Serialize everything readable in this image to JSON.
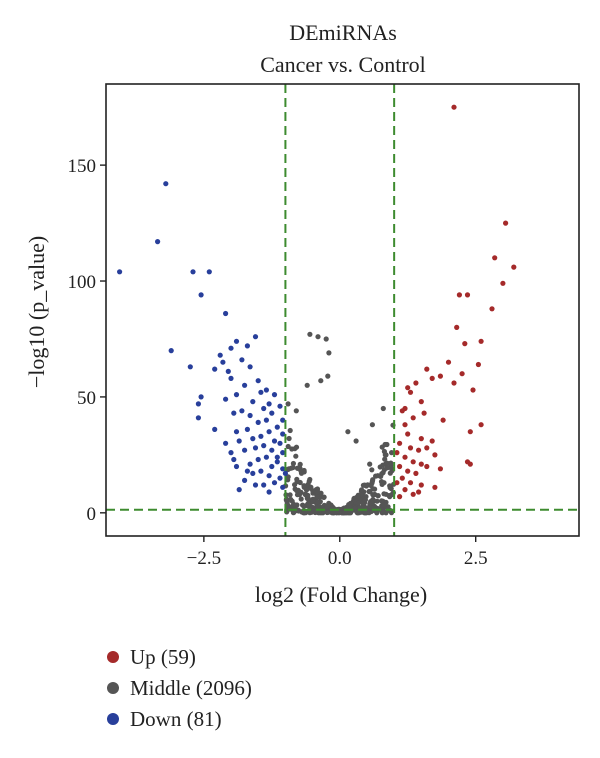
{
  "chart_data": {
    "type": "scatter",
    "title": "DEmiRNAs",
    "subtitle": "Cancer vs. Control",
    "xlabel": "log2 (Fold Change)",
    "ylabel": "−log10 (p_value)",
    "xlim": [
      -4.3,
      4.4
    ],
    "ylim": [
      -10,
      185
    ],
    "x_ticks": [
      -2.5,
      0.0,
      2.5
    ],
    "x_tick_labels": [
      "−2.5",
      "0.0",
      "2.5"
    ],
    "y_ticks": [
      0,
      50,
      100,
      150
    ],
    "y_tick_labels": [
      "0",
      "50",
      "100",
      "150"
    ],
    "grid": false,
    "reference_lines": {
      "vertical": [
        -1,
        1
      ],
      "horizontal": [
        1.3
      ],
      "color": "#3d8b2f",
      "style": "dashed"
    },
    "legend": {
      "placement": "below",
      "entries": [
        "Up (59)",
        "Middle (2096)",
        "Down (81)"
      ]
    },
    "series": [
      {
        "name": "Up (59)",
        "color": "#a52a2a",
        "points": [
          [
            2.1,
            175
          ],
          [
            3.05,
            125
          ],
          [
            3.2,
            106
          ],
          [
            2.85,
            110
          ],
          [
            3.0,
            99
          ],
          [
            2.2,
            94
          ],
          [
            2.35,
            94
          ],
          [
            2.8,
            88
          ],
          [
            2.15,
            80
          ],
          [
            2.3,
            73
          ],
          [
            2.6,
            74
          ],
          [
            2.55,
            64
          ],
          [
            2.0,
            65
          ],
          [
            2.25,
            60
          ],
          [
            1.85,
            59
          ],
          [
            1.6,
            62
          ],
          [
            1.7,
            58
          ],
          [
            1.4,
            56
          ],
          [
            1.25,
            54
          ],
          [
            1.3,
            52
          ],
          [
            2.1,
            56
          ],
          [
            2.45,
            53
          ],
          [
            1.5,
            48
          ],
          [
            1.2,
            45
          ],
          [
            1.15,
            44
          ],
          [
            1.55,
            43
          ],
          [
            1.35,
            41
          ],
          [
            1.9,
            40
          ],
          [
            2.4,
            35
          ],
          [
            2.6,
            38
          ],
          [
            1.2,
            38
          ],
          [
            1.25,
            34
          ],
          [
            1.5,
            32
          ],
          [
            1.7,
            31
          ],
          [
            1.1,
            30
          ],
          [
            1.3,
            28
          ],
          [
            1.45,
            27
          ],
          [
            1.6,
            28
          ],
          [
            1.05,
            26
          ],
          [
            1.2,
            24
          ],
          [
            1.35,
            22
          ],
          [
            1.5,
            21
          ],
          [
            1.75,
            25
          ],
          [
            1.1,
            20
          ],
          [
            1.25,
            18
          ],
          [
            1.4,
            17
          ],
          [
            1.6,
            20
          ],
          [
            1.15,
            15
          ],
          [
            1.3,
            13
          ],
          [
            1.05,
            13
          ],
          [
            1.5,
            12
          ],
          [
            1.75,
            11
          ],
          [
            1.2,
            10
          ],
          [
            1.35,
            8
          ],
          [
            1.1,
            7
          ],
          [
            2.35,
            22
          ],
          [
            2.4,
            21
          ],
          [
            1.85,
            19
          ],
          [
            1.45,
            9
          ]
        ]
      },
      {
        "name": "Middle (2096)",
        "color": "#555555",
        "points": []
      },
      {
        "name": "Down (81)",
        "color": "#283f9b",
        "points": [
          [
            -3.2,
            142
          ],
          [
            -3.35,
            117
          ],
          [
            -4.05,
            104
          ],
          [
            -2.7,
            104
          ],
          [
            -2.4,
            104
          ],
          [
            -2.55,
            94
          ],
          [
            -2.1,
            86
          ],
          [
            -3.1,
            70
          ],
          [
            -2.0,
            71
          ],
          [
            -1.7,
            72
          ],
          [
            -1.55,
            76
          ],
          [
            -1.9,
            74
          ],
          [
            -2.2,
            68
          ],
          [
            -2.15,
            65
          ],
          [
            -1.8,
            66
          ],
          [
            -1.65,
            63
          ],
          [
            -2.75,
            63
          ],
          [
            -2.3,
            62
          ],
          [
            -2.05,
            61
          ],
          [
            -1.5,
            57
          ],
          [
            -1.75,
            55
          ],
          [
            -2.0,
            58
          ],
          [
            -1.35,
            53
          ],
          [
            -1.45,
            52
          ],
          [
            -1.2,
            51
          ],
          [
            -1.9,
            51
          ],
          [
            -2.1,
            49
          ],
          [
            -1.6,
            48
          ],
          [
            -1.3,
            47
          ],
          [
            -2.55,
            50
          ],
          [
            -2.6,
            47
          ],
          [
            -1.1,
            46
          ],
          [
            -1.4,
            45
          ],
          [
            -1.8,
            44
          ],
          [
            -1.95,
            43
          ],
          [
            -1.25,
            43
          ],
          [
            -1.65,
            42
          ],
          [
            -2.6,
            41
          ],
          [
            -1.05,
            40
          ],
          [
            -1.35,
            40
          ],
          [
            -1.5,
            39
          ],
          [
            -1.15,
            37
          ],
          [
            -1.7,
            36
          ],
          [
            -1.9,
            35
          ],
          [
            -1.3,
            35
          ],
          [
            -1.05,
            34
          ],
          [
            -1.45,
            33
          ],
          [
            -1.6,
            32
          ],
          [
            -1.2,
            31
          ],
          [
            -1.85,
            31
          ],
          [
            -1.1,
            30
          ],
          [
            -1.4,
            29
          ],
          [
            -1.55,
            28
          ],
          [
            -1.25,
            27
          ],
          [
            -1.75,
            27
          ],
          [
            -2.0,
            26
          ],
          [
            -1.05,
            26
          ],
          [
            -1.35,
            24
          ],
          [
            -1.5,
            23
          ],
          [
            -1.15,
            22
          ],
          [
            -1.65,
            21
          ],
          [
            -1.9,
            20
          ],
          [
            -1.25,
            20
          ],
          [
            -1.05,
            19
          ],
          [
            -1.45,
            18
          ],
          [
            -1.6,
            17
          ],
          [
            -1.3,
            16
          ],
          [
            -1.1,
            15
          ],
          [
            -1.75,
            14
          ],
          [
            -1.2,
            13
          ],
          [
            -1.4,
            12
          ],
          [
            -1.85,
            10
          ],
          [
            -1.05,
            11
          ],
          [
            -1.55,
            12
          ],
          [
            -1.3,
            9
          ],
          [
            -2.3,
            36
          ],
          [
            -2.1,
            30
          ],
          [
            -1.95,
            23
          ],
          [
            -1.7,
            18
          ],
          [
            -1.15,
            24
          ],
          [
            -1.0,
            17
          ]
        ]
      }
    ]
  }
}
